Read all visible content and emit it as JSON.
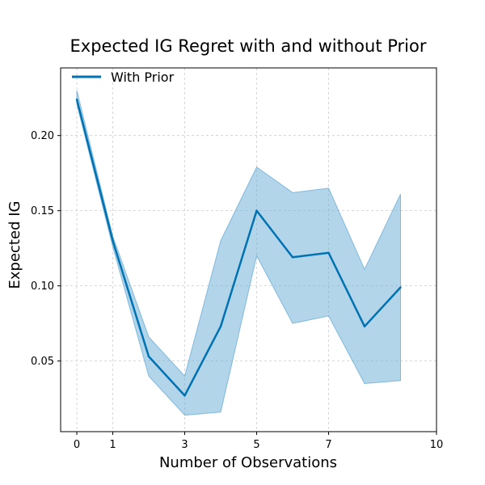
{
  "chart_data": {
    "type": "line",
    "title": "Expected IG Regret with and without Prior",
    "xlabel": "Number of Observations",
    "ylabel": "Expected IG",
    "xlim": [
      -0.45,
      10
    ],
    "ylim": [
      0.003,
      0.245
    ],
    "xticks": [
      0,
      1,
      3,
      5,
      7,
      10
    ],
    "xtick_labels": [
      "0",
      "1",
      "3",
      "5",
      "7",
      "10"
    ],
    "yticks": [
      0.05,
      0.1,
      0.15,
      0.2
    ],
    "ytick_labels": [
      "0.05",
      "0.10",
      "0.15",
      "0.20"
    ],
    "grid": true,
    "legend_position": "top-left",
    "series": [
      {
        "name": "With Prior",
        "color": "#0072b2",
        "band_color": "#6baed6",
        "x": [
          0,
          1,
          2,
          3,
          4,
          5,
          6,
          7,
          8,
          9
        ],
        "values": [
          0.224,
          0.13,
          0.053,
          0.027,
          0.073,
          0.15,
          0.119,
          0.122,
          0.073,
          0.099
        ],
        "lower": [
          0.221,
          0.126,
          0.04,
          0.014,
          0.016,
          0.12,
          0.075,
          0.08,
          0.035,
          0.037
        ],
        "upper": [
          0.23,
          0.133,
          0.066,
          0.04,
          0.13,
          0.179,
          0.162,
          0.165,
          0.111,
          0.161
        ]
      }
    ]
  }
}
